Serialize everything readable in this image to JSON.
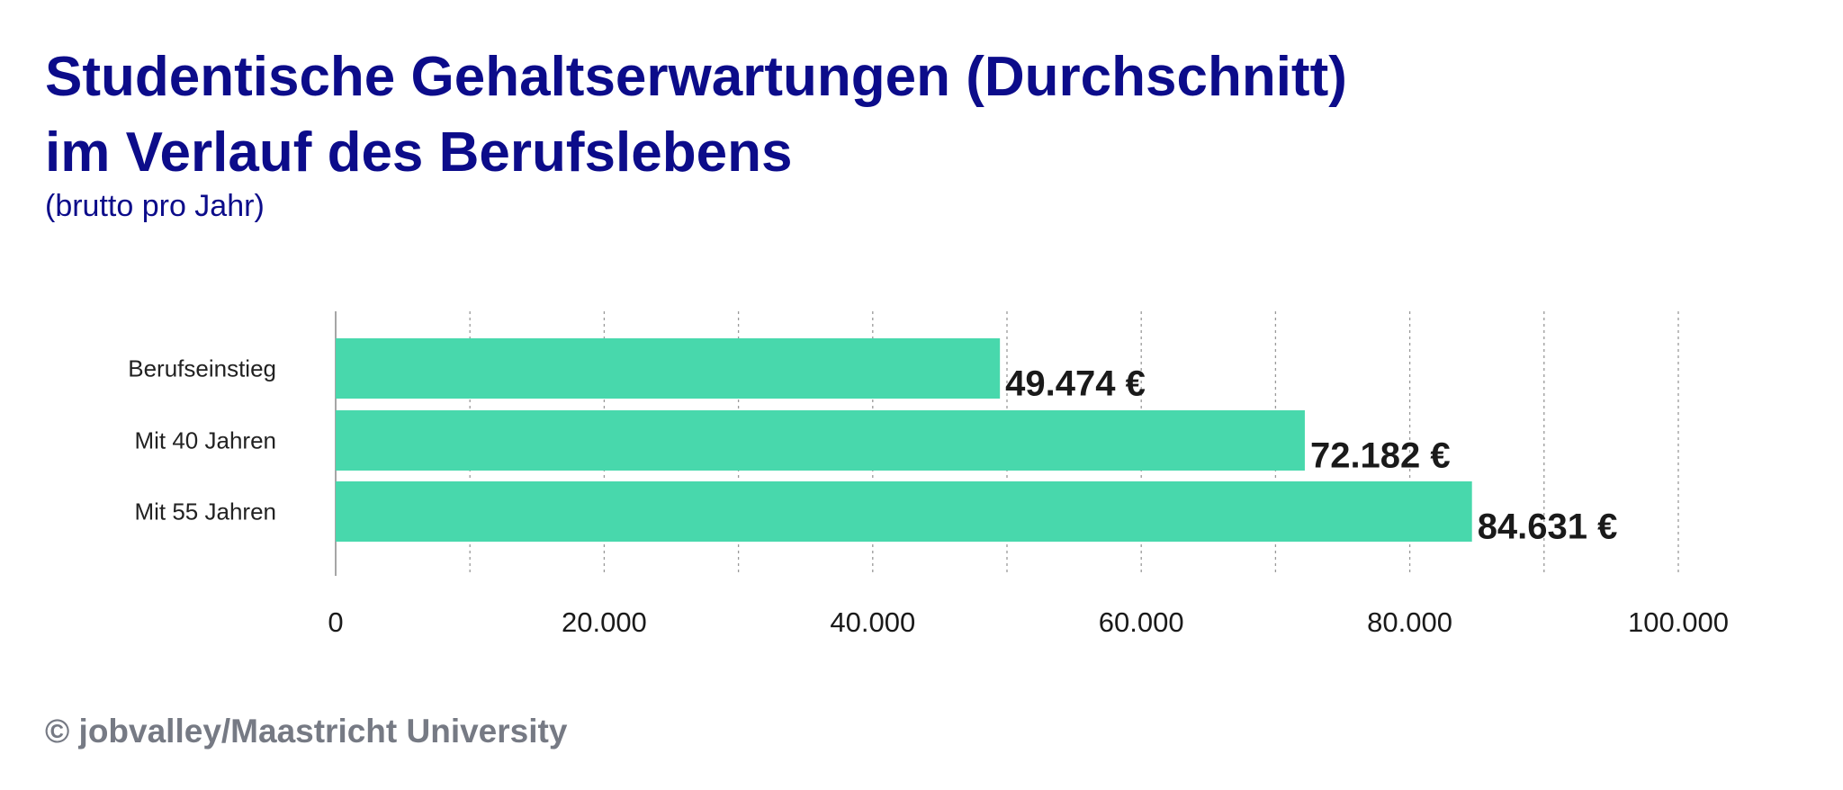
{
  "chart_data": {
    "type": "bar",
    "orientation": "horizontal",
    "title": "Studentische Gehaltserwartungen (Durchschnitt) im Verlauf des Berufslebens",
    "title_lines": [
      "Studentische Gehaltserwartungen (Durchschnitt)",
      "im Verlauf des Berufslebens"
    ],
    "subtitle": "(brutto pro Jahr)",
    "categories": [
      "Berufseinstieg",
      "Mit 40 Jahren",
      "Mit 55 Jahren"
    ],
    "values": [
      49474,
      72182,
      84631
    ],
    "data_labels": [
      "49.474 €",
      "72.182 €",
      "84.631 €"
    ],
    "xlim": [
      0,
      100000
    ],
    "x_ticks": [
      0,
      20000,
      40000,
      60000,
      80000,
      100000
    ],
    "x_tick_labels": [
      "0",
      "20.000",
      "40.000",
      "60.000",
      "80.000",
      "100.000"
    ],
    "gridlines": [
      10000,
      20000,
      30000,
      40000,
      50000,
      60000,
      70000,
      80000,
      90000,
      100000
    ],
    "grid": "vertical dotted",
    "bar_color": "#48d8ac",
    "title_color": "#0c0c8a"
  },
  "footer": "© jobvalley/Maastricht University"
}
